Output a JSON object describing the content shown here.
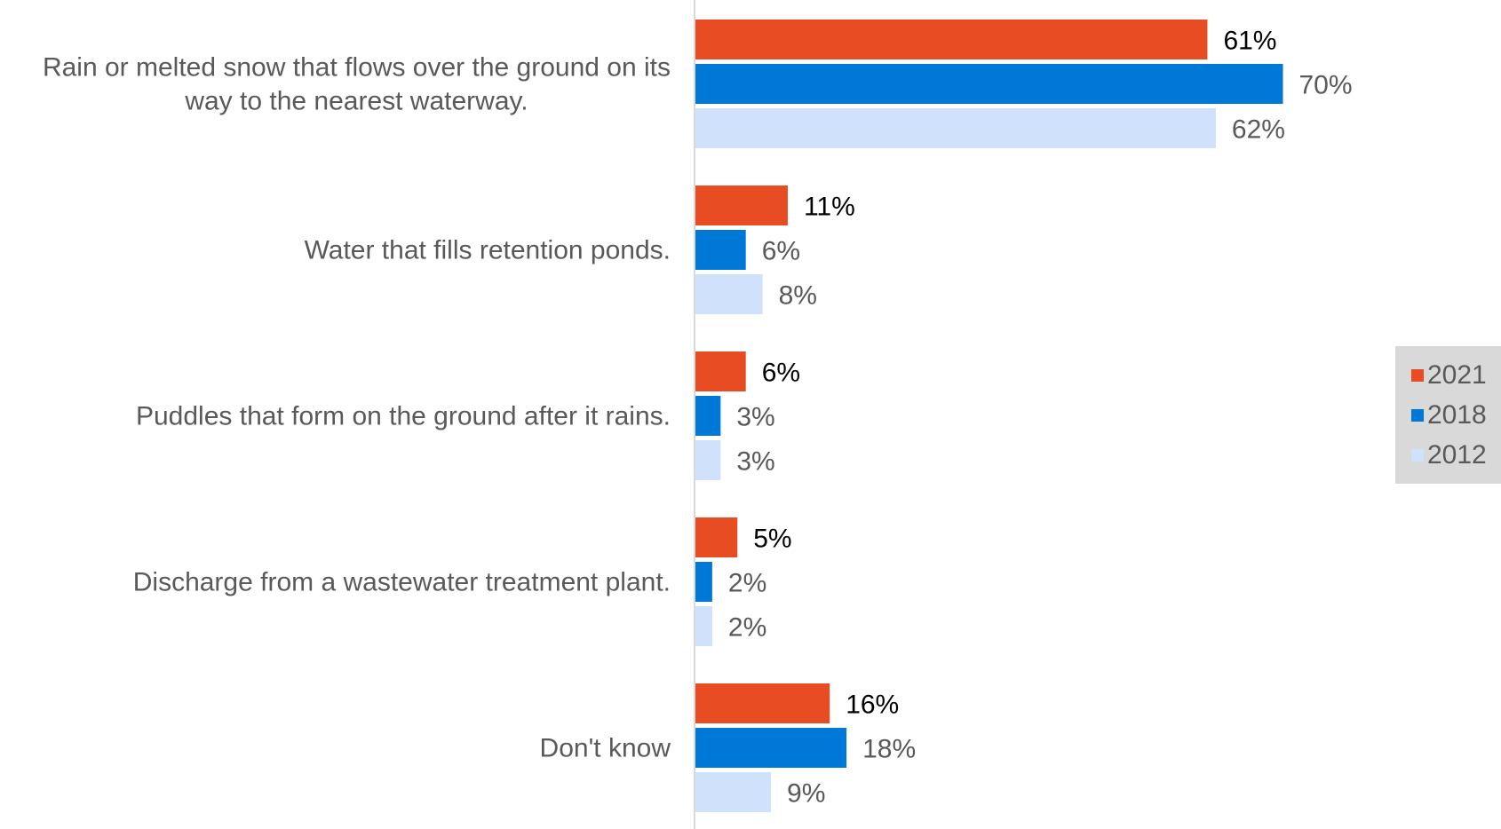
{
  "chart_data": {
    "type": "bar",
    "orientation": "horizontal",
    "title": "",
    "xlabel": "",
    "ylabel": "",
    "categories": [
      "Rain or melted snow that flows over the ground on its way to the nearest waterway.",
      "Water that fills retention ponds.",
      "Puddles that form on the ground after it rains.",
      "Discharge from a wastewater treatment plant.",
      "Don't know"
    ],
    "category_lines": [
      [
        "Rain or melted snow that flows over the ground on its",
        "way to the nearest waterway."
      ],
      [
        "Water that fills retention ponds."
      ],
      [
        "Puddles that form on the ground after it rains."
      ],
      [
        "Discharge from a wastewater treatment plant."
      ],
      [
        "Don't know"
      ]
    ],
    "series": [
      {
        "name": "2021",
        "color": "#e84c22",
        "label_color": "#000000",
        "values": [
          61,
          11,
          6,
          5,
          16
        ]
      },
      {
        "name": "2018",
        "color": "#0078d7",
        "label_color": "#595959",
        "values": [
          70,
          6,
          3,
          2,
          18
        ]
      },
      {
        "name": "2012",
        "color": "#d0e1fb",
        "label_color": "#595959",
        "values": [
          62,
          8,
          3,
          2,
          9
        ]
      }
    ],
    "value_suffix": "%",
    "xlim": [
      0,
      100
    ],
    "grid": false,
    "legend_position": "right"
  },
  "legend": {
    "items": [
      {
        "label": "2021",
        "color": "#e84c22"
      },
      {
        "label": "2018",
        "color": "#0078d7"
      },
      {
        "label": "2012",
        "color": "#d0e1fb"
      }
    ]
  }
}
